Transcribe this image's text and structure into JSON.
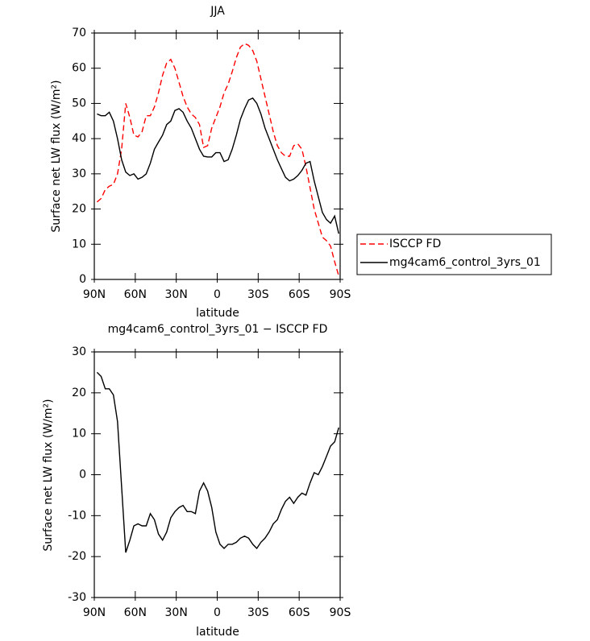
{
  "chart_data": [
    {
      "type": "line",
      "title": "JJA",
      "xlabel": "latitude",
      "ylabel": "Surface net LW flux (W/m²)",
      "x": [
        88,
        85,
        82,
        79,
        76,
        73,
        70,
        67,
        64,
        61,
        58,
        55,
        52,
        49,
        46,
        43,
        40,
        37,
        34,
        31,
        28,
        25,
        22,
        19,
        16,
        13,
        10,
        7,
        4,
        1,
        -2,
        -5,
        -8,
        -11,
        -14,
        -17,
        -20,
        -23,
        -26,
        -29,
        -32,
        -35,
        -38,
        -41,
        -44,
        -47,
        -50,
        -53,
        -56,
        -59,
        -62,
        -65,
        -68,
        -71,
        -74,
        -77,
        -80,
        -83,
        -86,
        -89
      ],
      "xlim": [
        90,
        -90
      ],
      "xticks": [
        {
          "value": 90,
          "label": "90N"
        },
        {
          "value": 60,
          "label": "60N"
        },
        {
          "value": 30,
          "label": "30N"
        },
        0,
        {
          "value": -30,
          "label": "30S"
        },
        {
          "value": -60,
          "label": "60S"
        },
        {
          "value": -90,
          "label": "90S"
        }
      ],
      "ylim": [
        0,
        70
      ],
      "yticks": [
        0,
        10,
        20,
        30,
        40,
        50,
        60,
        70
      ],
      "legend": "outside-right",
      "series": [
        {
          "name": "ISCCP FD",
          "color": "#ff0000",
          "style": "dashed",
          "values": [
            22,
            23,
            25.5,
            26.5,
            27,
            30,
            37,
            50,
            46,
            41,
            40.5,
            42,
            46.5,
            46.5,
            49,
            53,
            58,
            61.5,
            62.5,
            60,
            56,
            52,
            49,
            47,
            46,
            44,
            37.5,
            38,
            43,
            46,
            49,
            53,
            55.5,
            59,
            63,
            66,
            67,
            66.5,
            65,
            62,
            57,
            52,
            47,
            42,
            38,
            36,
            35,
            35,
            38,
            38.5,
            37,
            32,
            26,
            20,
            16,
            12,
            11,
            9.5,
            5,
            1
          ]
        },
        {
          "name": "mg4cam6_control_3yrs_01",
          "color": "#000000",
          "style": "solid",
          "values": [
            47,
            46.5,
            46.5,
            47.5,
            45,
            40,
            34,
            30.5,
            29.5,
            30,
            28.5,
            29,
            30,
            33,
            37,
            39,
            41,
            44,
            45,
            48,
            48.5,
            47.5,
            45,
            43,
            40,
            37,
            35,
            34.8,
            34.8,
            36,
            36,
            33.5,
            34,
            37,
            41,
            45.5,
            48.5,
            51,
            51.5,
            50,
            47,
            43,
            40,
            37,
            34,
            31.5,
            29,
            28,
            28.5,
            29.5,
            31,
            33,
            33.5,
            28,
            23.5,
            19,
            17,
            16,
            18,
            13
          ]
        }
      ]
    },
    {
      "type": "line",
      "title": "mg4cam6_control_3yrs_01 − ISCCP FD",
      "xlabel": "latitude",
      "ylabel": "Surface net LW flux (W/m²)",
      "x": [
        88,
        85,
        82,
        79,
        76,
        73,
        70,
        67,
        64,
        61,
        58,
        55,
        52,
        49,
        46,
        43,
        40,
        37,
        34,
        31,
        28,
        25,
        22,
        19,
        16,
        13,
        10,
        7,
        4,
        1,
        -2,
        -5,
        -8,
        -11,
        -14,
        -17,
        -20,
        -23,
        -26,
        -29,
        -32,
        -35,
        -38,
        -41,
        -44,
        -47,
        -50,
        -53,
        -56,
        -59,
        -62,
        -65,
        -68,
        -71,
        -74,
        -77,
        -80,
        -83,
        -86,
        -89
      ],
      "xlim": [
        90,
        -90
      ],
      "xticks": [
        {
          "value": 90,
          "label": "90N"
        },
        {
          "value": 60,
          "label": "60N"
        },
        {
          "value": 30,
          "label": "30N"
        },
        0,
        {
          "value": -30,
          "label": "30S"
        },
        {
          "value": -60,
          "label": "60S"
        },
        {
          "value": -90,
          "label": "90S"
        }
      ],
      "ylim": [
        -30,
        30
      ],
      "yticks": [
        -30,
        -20,
        -10,
        0,
        10,
        20,
        30
      ],
      "series": [
        {
          "color": "#000000",
          "style": "solid",
          "values": [
            25,
            24,
            21,
            21,
            19.5,
            13,
            -3,
            -19,
            -16,
            -12.5,
            -12,
            -12.5,
            -12.5,
            -9.5,
            -11,
            -14.5,
            -16,
            -14,
            -10.5,
            -9,
            -8,
            -7.5,
            -9,
            -9,
            -9.5,
            -4,
            -2,
            -4,
            -8,
            -14,
            -17,
            -18,
            -17,
            -17,
            -16.5,
            -15.5,
            -15,
            -15.5,
            -17,
            -18,
            -16.5,
            -15.5,
            -14,
            -12,
            -11,
            -8.5,
            -6.5,
            -5.5,
            -7,
            -5.5,
            -4.5,
            -5,
            -2,
            0.5,
            0,
            2,
            4.5,
            7,
            8,
            11.5
          ]
        }
      ]
    }
  ]
}
